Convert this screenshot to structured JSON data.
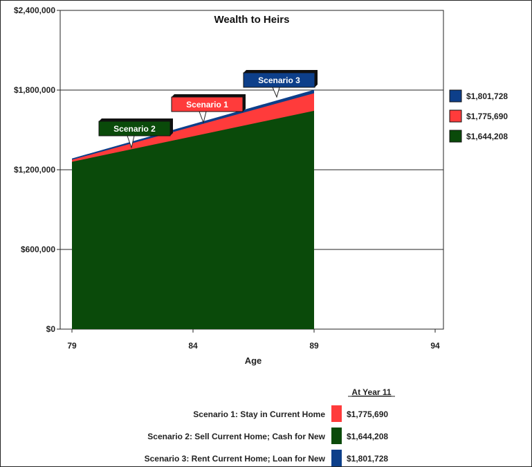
{
  "colors": {
    "scenario1": "#ff3b3b",
    "scenario2": "#0a4a0a",
    "scenario3": "#0d3f8a",
    "callout_shadow": "#111111"
  },
  "chart_data": {
    "type": "area",
    "title": "Wealth to Heirs",
    "xlabel": "Age",
    "ylabel": "",
    "xlim": [
      79,
      94
    ],
    "ylim": [
      0,
      2400000
    ],
    "x_ticks": [
      "79",
      "84",
      "89",
      "94"
    ],
    "y_ticks": [
      "$0",
      "$600,000",
      "$1,200,000",
      "$1,800,000",
      "$2,400,000"
    ],
    "grid": "horizontal",
    "x": [
      79,
      89
    ],
    "series": [
      {
        "name": "Scenario 2",
        "values": [
          1260000,
          1644208
        ]
      },
      {
        "name": "Scenario 1",
        "values": [
          1275000,
          1775690
        ]
      },
      {
        "name": "Scenario 3",
        "values": [
          1285000,
          1801728
        ]
      }
    ],
    "legend_placement": "right",
    "legend": [
      {
        "key": "scenario3",
        "label": "$1,801,728"
      },
      {
        "key": "scenario1",
        "label": "$1,775,690"
      },
      {
        "key": "scenario2",
        "label": "$1,644,208"
      }
    ],
    "callouts": [
      {
        "key": "scenario3",
        "label": "Scenario 3"
      },
      {
        "key": "scenario1",
        "label": "Scenario 1"
      },
      {
        "key": "scenario2",
        "label": "Scenario 2"
      }
    ]
  },
  "summary": {
    "header": "At Year 11",
    "rows": [
      {
        "key": "scenario1",
        "label": "Scenario 1:  Stay in Current Home",
        "value": "$1,775,690"
      },
      {
        "key": "scenario2",
        "label": "Scenario 2:  Sell Current Home; Cash for New",
        "value": "$1,644,208"
      },
      {
        "key": "scenario3",
        "label": "Scenario 3:  Rent Current Home; Loan for New",
        "value": "$1,801,728"
      }
    ]
  }
}
